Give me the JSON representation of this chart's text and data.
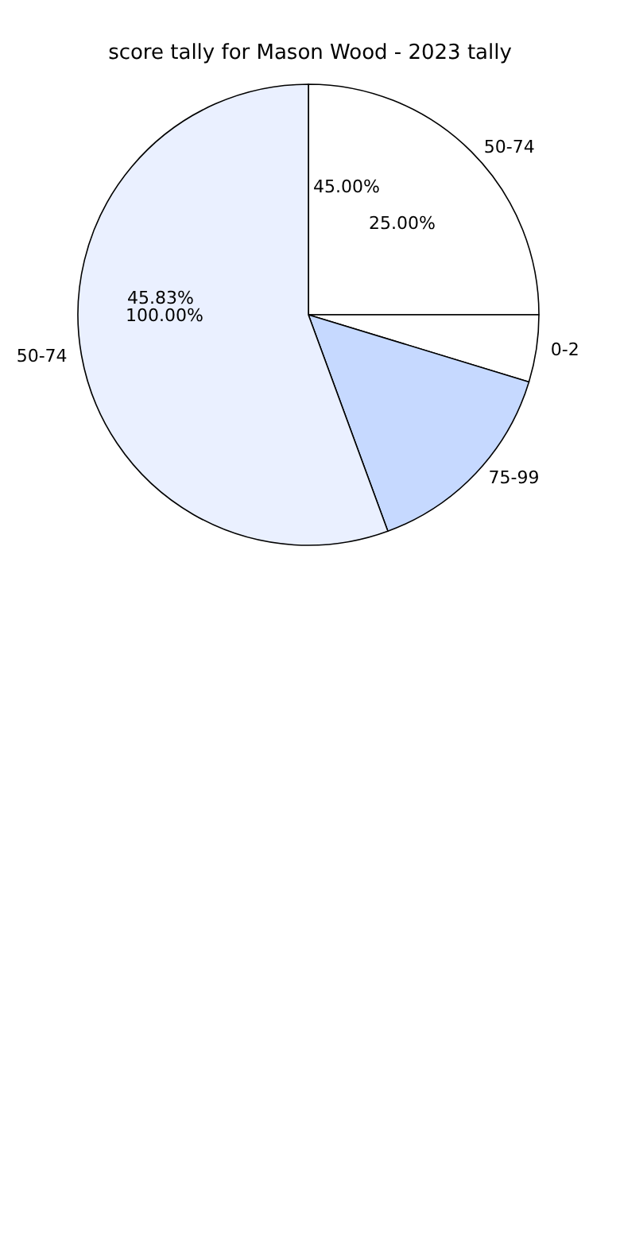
{
  "chart_data": {
    "type": "pie",
    "title": "score tally for Mason Wood - 2023 tally",
    "categories": [
      "50-74",
      "0-2",
      "75-99",
      "50-74"
    ],
    "values": [
      25,
      4.7,
      14.7,
      55.6
    ],
    "colors": [
      "#ffffff",
      "#ffffff",
      "#c6d9ff",
      "#eaf0ff"
    ],
    "annotations": [
      "45.00%",
      "100.00%",
      "25.00%",
      "45.83%"
    ],
    "legend": false
  }
}
